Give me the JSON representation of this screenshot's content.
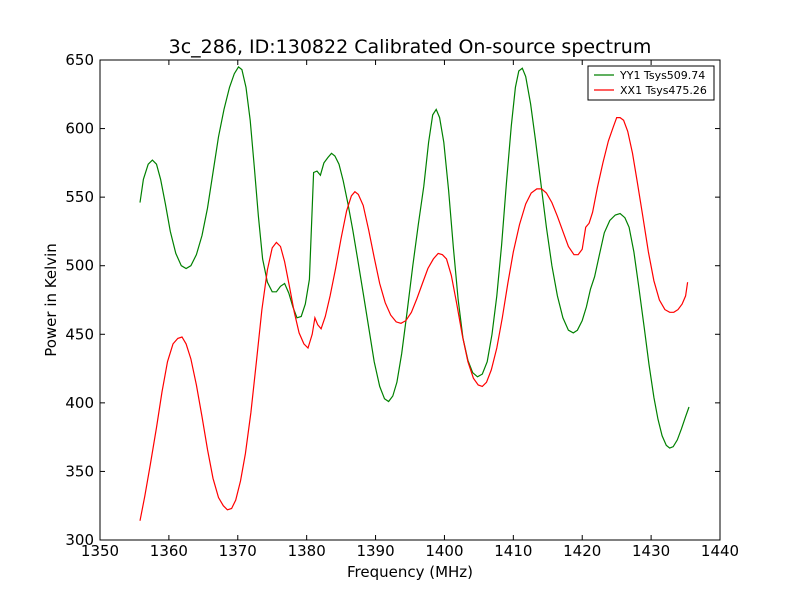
{
  "chart_data": {
    "type": "line",
    "title": "3c_286, ID:130822 Calibrated On-source spectrum",
    "xlabel": "Frequency (MHz)",
    "ylabel": "Power in Kelvin",
    "xlim": [
      1350,
      1440
    ],
    "ylim": [
      300,
      650
    ],
    "x_ticks": [
      1350,
      1360,
      1370,
      1380,
      1390,
      1400,
      1410,
      1420,
      1430,
      1440
    ],
    "y_ticks": [
      300,
      350,
      400,
      450,
      500,
      550,
      600,
      650
    ],
    "grid": false,
    "legend_position": "top-right",
    "series": [
      {
        "name": "YY1 Tsys509.74",
        "color": "#008000",
        "points": [
          [
            1355.8,
            546
          ],
          [
            1356.3,
            563
          ],
          [
            1357,
            574
          ],
          [
            1357.6,
            577
          ],
          [
            1358.2,
            574
          ],
          [
            1358.8,
            563
          ],
          [
            1359.5,
            545
          ],
          [
            1360.2,
            525
          ],
          [
            1361,
            509
          ],
          [
            1361.8,
            500
          ],
          [
            1362.5,
            498
          ],
          [
            1363.2,
            500
          ],
          [
            1364,
            508
          ],
          [
            1364.8,
            522
          ],
          [
            1365.6,
            542
          ],
          [
            1366.4,
            568
          ],
          [
            1367.2,
            594
          ],
          [
            1368,
            614
          ],
          [
            1368.8,
            630
          ],
          [
            1369.5,
            640
          ],
          [
            1370.1,
            645
          ],
          [
            1370.6,
            643
          ],
          [
            1371.2,
            630
          ],
          [
            1371.8,
            606
          ],
          [
            1372.4,
            572
          ],
          [
            1373,
            536
          ],
          [
            1373.6,
            505
          ],
          [
            1374.3,
            488
          ],
          [
            1375,
            481
          ],
          [
            1375.6,
            481
          ],
          [
            1376.2,
            485
          ],
          [
            1376.8,
            487
          ],
          [
            1377.4,
            480
          ],
          [
            1378,
            470
          ],
          [
            1378.6,
            462
          ],
          [
            1379.2,
            463
          ],
          [
            1379.8,
            472
          ],
          [
            1380.4,
            490
          ],
          [
            1381,
            568
          ],
          [
            1381.5,
            569
          ],
          [
            1382,
            566
          ],
          [
            1382.5,
            575
          ],
          [
            1383.1,
            579
          ],
          [
            1383.6,
            582
          ],
          [
            1384.1,
            580
          ],
          [
            1384.7,
            574
          ],
          [
            1385.3,
            562
          ],
          [
            1386,
            545
          ],
          [
            1386.7,
            526
          ],
          [
            1387.4,
            505
          ],
          [
            1388.2,
            480
          ],
          [
            1389,
            455
          ],
          [
            1389.8,
            430
          ],
          [
            1390.6,
            412
          ],
          [
            1391.3,
            403
          ],
          [
            1391.9,
            401
          ],
          [
            1392.5,
            405
          ],
          [
            1393.1,
            415
          ],
          [
            1393.8,
            436
          ],
          [
            1394.6,
            467
          ],
          [
            1395.4,
            500
          ],
          [
            1396.2,
            530
          ],
          [
            1397,
            558
          ],
          [
            1397.7,
            590
          ],
          [
            1398.3,
            610
          ],
          [
            1398.8,
            614
          ],
          [
            1399.3,
            608
          ],
          [
            1399.9,
            590
          ],
          [
            1400.6,
            555
          ],
          [
            1401.3,
            513
          ],
          [
            1402,
            475
          ],
          [
            1402.7,
            447
          ],
          [
            1403.4,
            431
          ],
          [
            1404.1,
            422
          ],
          [
            1404.8,
            419
          ],
          [
            1405.5,
            421
          ],
          [
            1406.2,
            430
          ],
          [
            1406.9,
            450
          ],
          [
            1407.6,
            478
          ],
          [
            1408.3,
            515
          ],
          [
            1409,
            560
          ],
          [
            1409.7,
            602
          ],
          [
            1410.3,
            630
          ],
          [
            1410.8,
            642
          ],
          [
            1411.3,
            644
          ],
          [
            1411.8,
            638
          ],
          [
            1412.5,
            618
          ],
          [
            1413.2,
            592
          ],
          [
            1414,
            560
          ],
          [
            1414.8,
            528
          ],
          [
            1415.6,
            500
          ],
          [
            1416.4,
            478
          ],
          [
            1417.2,
            462
          ],
          [
            1418,
            453
          ],
          [
            1418.7,
            451
          ],
          [
            1419.3,
            453
          ],
          [
            1420,
            460
          ],
          [
            1420.6,
            470
          ],
          [
            1421.2,
            483
          ],
          [
            1421.8,
            492
          ],
          [
            1422.5,
            508
          ],
          [
            1423.2,
            524
          ],
          [
            1424,
            533
          ],
          [
            1424.8,
            537
          ],
          [
            1425.5,
            538
          ],
          [
            1426.2,
            535
          ],
          [
            1426.8,
            528
          ],
          [
            1427.5,
            510
          ],
          [
            1428.2,
            485
          ],
          [
            1429,
            455
          ],
          [
            1429.7,
            428
          ],
          [
            1430.4,
            404
          ],
          [
            1431,
            388
          ],
          [
            1431.6,
            376
          ],
          [
            1432.2,
            369
          ],
          [
            1432.7,
            367
          ],
          [
            1433.2,
            368
          ],
          [
            1433.8,
            373
          ],
          [
            1434.4,
            381
          ],
          [
            1435,
            390
          ],
          [
            1435.5,
            397
          ]
        ]
      },
      {
        "name": "XX1 Tsys475.26",
        "color": "#ff0000",
        "points": [
          [
            1355.8,
            314
          ],
          [
            1356.5,
            332
          ],
          [
            1357.3,
            355
          ],
          [
            1358.2,
            382
          ],
          [
            1359,
            408
          ],
          [
            1359.8,
            430
          ],
          [
            1360.6,
            443
          ],
          [
            1361.3,
            447
          ],
          [
            1361.9,
            448
          ],
          [
            1362.5,
            443
          ],
          [
            1363.2,
            432
          ],
          [
            1364,
            413
          ],
          [
            1364.8,
            390
          ],
          [
            1365.6,
            366
          ],
          [
            1366.4,
            345
          ],
          [
            1367.2,
            331
          ],
          [
            1367.9,
            325
          ],
          [
            1368.5,
            322
          ],
          [
            1369.1,
            323
          ],
          [
            1369.7,
            329
          ],
          [
            1370.4,
            343
          ],
          [
            1371.1,
            363
          ],
          [
            1371.9,
            393
          ],
          [
            1372.7,
            430
          ],
          [
            1373.5,
            468
          ],
          [
            1374.3,
            497
          ],
          [
            1375,
            513
          ],
          [
            1375.6,
            517
          ],
          [
            1376.2,
            514
          ],
          [
            1376.8,
            503
          ],
          [
            1377.5,
            485
          ],
          [
            1378.2,
            466
          ],
          [
            1378.9,
            451
          ],
          [
            1379.6,
            443
          ],
          [
            1380.2,
            440
          ],
          [
            1380.8,
            450
          ],
          [
            1381.2,
            462
          ],
          [
            1381.6,
            457
          ],
          [
            1382.1,
            454
          ],
          [
            1382.7,
            463
          ],
          [
            1383.4,
            478
          ],
          [
            1384.2,
            498
          ],
          [
            1385,
            520
          ],
          [
            1385.8,
            540
          ],
          [
            1386.5,
            551
          ],
          [
            1387,
            554
          ],
          [
            1387.5,
            552
          ],
          [
            1388.2,
            544
          ],
          [
            1389,
            526
          ],
          [
            1389.8,
            506
          ],
          [
            1390.6,
            487
          ],
          [
            1391.4,
            473
          ],
          [
            1392.2,
            464
          ],
          [
            1393,
            459
          ],
          [
            1393.7,
            458
          ],
          [
            1394.4,
            460
          ],
          [
            1395.2,
            466
          ],
          [
            1396,
            476
          ],
          [
            1396.8,
            487
          ],
          [
            1397.6,
            498
          ],
          [
            1398.4,
            505
          ],
          [
            1399.1,
            509
          ],
          [
            1399.7,
            508
          ],
          [
            1400.3,
            505
          ],
          [
            1401,
            493
          ],
          [
            1401.8,
            472
          ],
          [
            1402.6,
            449
          ],
          [
            1403.4,
            430
          ],
          [
            1404.2,
            418
          ],
          [
            1404.9,
            413
          ],
          [
            1405.5,
            412
          ],
          [
            1406.1,
            415
          ],
          [
            1406.8,
            424
          ],
          [
            1407.6,
            440
          ],
          [
            1408.4,
            462
          ],
          [
            1409.2,
            487
          ],
          [
            1410,
            510
          ],
          [
            1410.9,
            530
          ],
          [
            1411.8,
            545
          ],
          [
            1412.6,
            553
          ],
          [
            1413.4,
            556
          ],
          [
            1414.1,
            556
          ],
          [
            1414.8,
            553
          ],
          [
            1415.6,
            546
          ],
          [
            1416.4,
            536
          ],
          [
            1417.2,
            525
          ],
          [
            1418,
            514
          ],
          [
            1418.8,
            508
          ],
          [
            1419.4,
            508
          ],
          [
            1420,
            512
          ],
          [
            1420.5,
            528
          ],
          [
            1421,
            531
          ],
          [
            1421.5,
            539
          ],
          [
            1422.2,
            557
          ],
          [
            1423,
            575
          ],
          [
            1423.8,
            591
          ],
          [
            1424.5,
            601
          ],
          [
            1425,
            608
          ],
          [
            1425.5,
            608
          ],
          [
            1426,
            606
          ],
          [
            1426.6,
            598
          ],
          [
            1427.3,
            582
          ],
          [
            1428,
            561
          ],
          [
            1428.8,
            536
          ],
          [
            1429.6,
            510
          ],
          [
            1430.4,
            489
          ],
          [
            1431.2,
            475
          ],
          [
            1432,
            468
          ],
          [
            1432.7,
            466
          ],
          [
            1433.3,
            466
          ],
          [
            1433.9,
            468
          ],
          [
            1434.5,
            472
          ],
          [
            1435,
            478
          ],
          [
            1435.3,
            488
          ]
        ]
      }
    ]
  }
}
